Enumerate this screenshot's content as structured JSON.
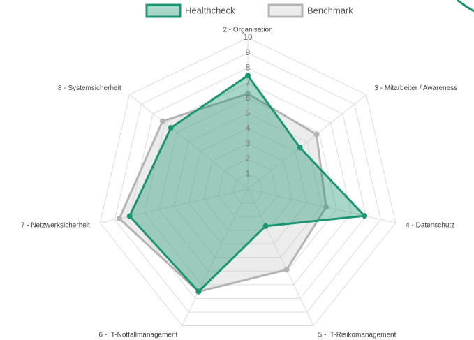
{
  "chart_data": {
    "type": "radar",
    "categories": [
      "2 - Organisation",
      "3 - Mitarbeiter / Awareness",
      "4 - Datenschutz",
      "5 - IT-Risikomanagement",
      "6 - IT-Notfallmanagement",
      "7 - Netzwerksicherheit",
      "8 - Systemsicherheit"
    ],
    "series": [
      {
        "name": "Healthcheck",
        "color": "#1b9572",
        "values": [
          7.5,
          4.4,
          7.9,
          2.7,
          7.5,
          8,
          6.5
        ]
      },
      {
        "name": "Benchmark",
        "color": "#b4b4b4",
        "values": [
          6.3,
          5.8,
          5.3,
          5.9,
          7.5,
          8.7,
          7.2
        ]
      }
    ],
    "rlim": [
      0,
      10
    ],
    "rticks": [
      1,
      2,
      3,
      4,
      5,
      6,
      7,
      8,
      9,
      10
    ],
    "grid": true,
    "legend": "top"
  }
}
